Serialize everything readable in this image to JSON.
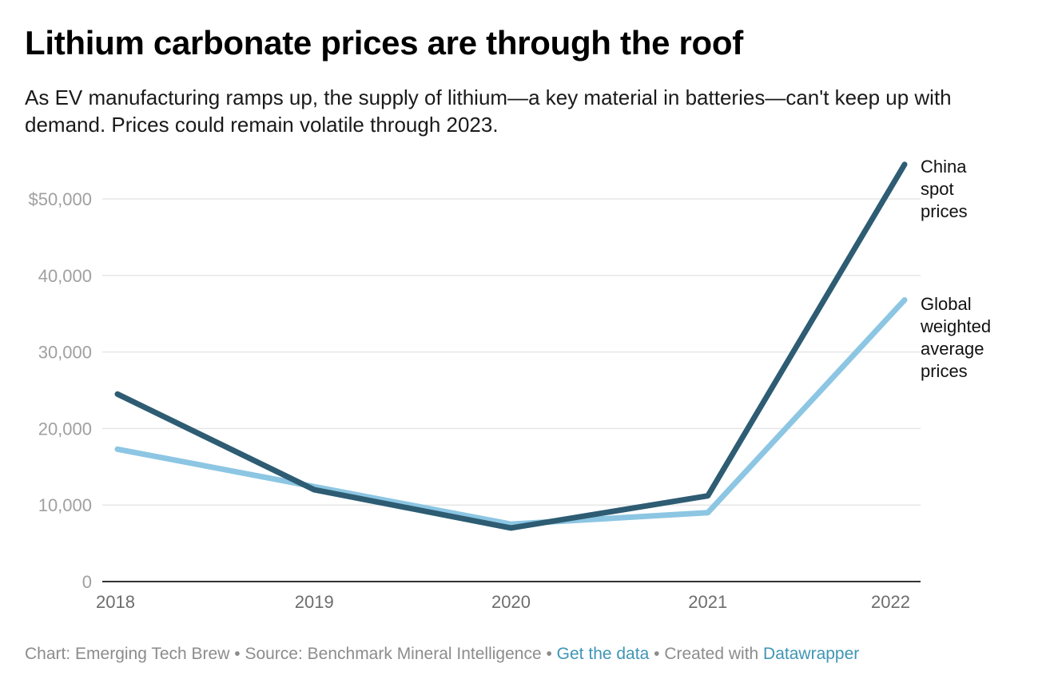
{
  "header": {
    "title": "Lithium carbonate prices are through the roof",
    "subtitle": "As EV manufacturing ramps up, the supply of lithium—a key material in batteries—can't keep up with demand. Prices could remain volatile through 2023."
  },
  "footer": {
    "chart_credit": "Chart: Emerging Tech Brew",
    "separator": "•",
    "source": "Source: Benchmark Mineral Intelligence",
    "data_link": "Get the data",
    "created_with": "Created with",
    "tool_link": "Datawrapper"
  },
  "colors": {
    "china": "#2d5c73",
    "global": "#8cc6e3",
    "grid": "#e6e6e6",
    "axis": "#333333",
    "link": "#3f95b5"
  },
  "chart_data": {
    "type": "line",
    "x": [
      "2018",
      "2019",
      "2020",
      "2021",
      "2022"
    ],
    "series": [
      {
        "name": "China spot prices",
        "label_lines": [
          "China",
          "spot",
          "prices"
        ],
        "values": [
          24500,
          12000,
          7000,
          11200,
          54500
        ]
      },
      {
        "name": "Global weighted average prices",
        "label_lines": [
          "Global",
          "weighted",
          "average",
          "prices"
        ],
        "values": [
          17300,
          12400,
          7500,
          9000,
          36800
        ]
      }
    ],
    "yticks": [
      0,
      10000,
      20000,
      30000,
      40000,
      50000
    ],
    "ytick_labels": [
      "0",
      "10,000",
      "20,000",
      "30,000",
      "40,000",
      "$50,000"
    ],
    "ylim": [
      0,
      50000
    ],
    "grid": true,
    "legend": "direct labels at line ends",
    "xlabel": "",
    "ylabel": ""
  }
}
